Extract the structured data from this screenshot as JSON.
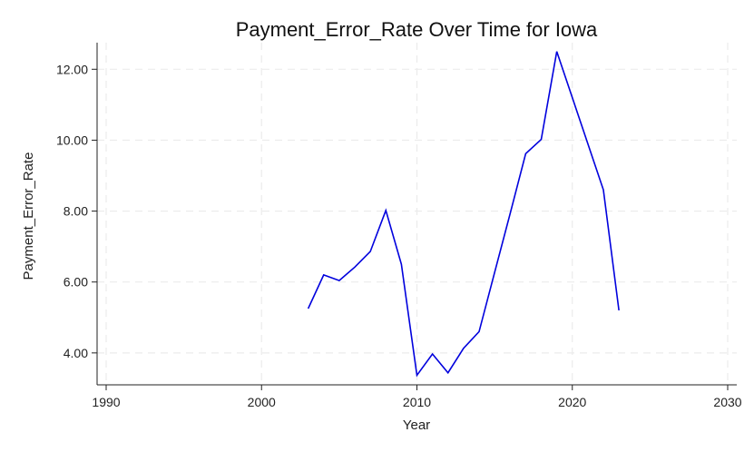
{
  "chart_data": {
    "type": "line",
    "title": "Payment_Error_Rate Over Time for Iowa",
    "xlabel": "Year",
    "ylabel": "Payment_Error_Rate",
    "xlim": [
      1990,
      2030
    ],
    "ylim": [
      3.1,
      12.75
    ],
    "x_ticks": [
      1990,
      2000,
      2010,
      2020,
      2030
    ],
    "y_ticks": [
      4.0,
      6.0,
      8.0,
      10.0,
      12.0
    ],
    "y_tick_labels": [
      "4.00",
      "6.00",
      "8.00",
      "10.00",
      "12.00"
    ],
    "grid": true,
    "series": [
      {
        "color": "#0000dd",
        "x": [
          2003,
          2004,
          2005,
          2006,
          2007,
          2008,
          2009,
          2010,
          2011,
          2012,
          2013,
          2014,
          2015,
          2016,
          2017,
          2018,
          2019,
          2020,
          2021,
          2022,
          2023
        ],
        "y": [
          5.25,
          6.2,
          6.04,
          6.42,
          6.86,
          8.02,
          6.5,
          3.37,
          3.97,
          3.44,
          4.13,
          4.6,
          6.27,
          7.93,
          9.62,
          10.02,
          12.5,
          11.2,
          9.9,
          8.6,
          5.2
        ]
      }
    ]
  }
}
